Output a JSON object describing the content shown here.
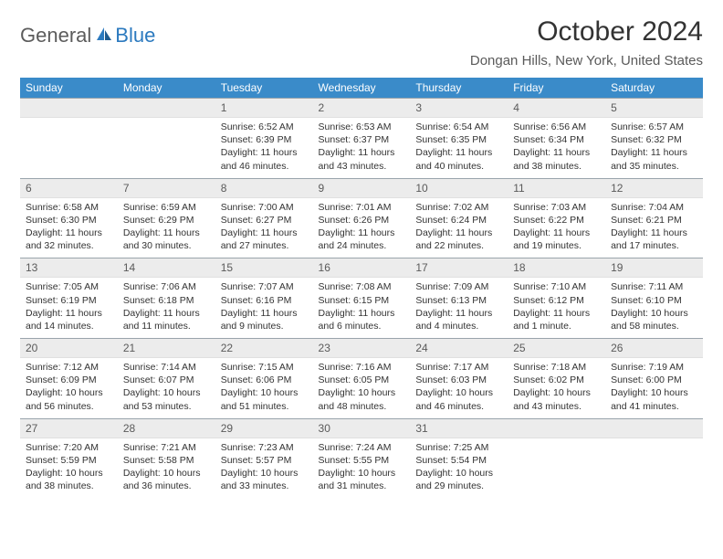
{
  "logo": {
    "general": "General",
    "blue": "Blue"
  },
  "title": "October 2024",
  "location": "Dongan Hills, New York, United States",
  "day_headers": [
    "Sunday",
    "Monday",
    "Tuesday",
    "Wednesday",
    "Thursday",
    "Friday",
    "Saturday"
  ],
  "colors": {
    "header_bg": "#3a8bc9",
    "header_text": "#ffffff",
    "daynum_bg": "#ececec",
    "daynum_border_top": "#9aa4ac",
    "text": "#333333",
    "location_text": "#5a5a5a",
    "logo_gray": "#5c5c5c",
    "logo_blue": "#2c7abf"
  },
  "weeks": [
    [
      {
        "num": "",
        "sunrise": "",
        "sunset": "",
        "daylight": ""
      },
      {
        "num": "",
        "sunrise": "",
        "sunset": "",
        "daylight": ""
      },
      {
        "num": "1",
        "sunrise": "Sunrise: 6:52 AM",
        "sunset": "Sunset: 6:39 PM",
        "daylight": "Daylight: 11 hours and 46 minutes."
      },
      {
        "num": "2",
        "sunrise": "Sunrise: 6:53 AM",
        "sunset": "Sunset: 6:37 PM",
        "daylight": "Daylight: 11 hours and 43 minutes."
      },
      {
        "num": "3",
        "sunrise": "Sunrise: 6:54 AM",
        "sunset": "Sunset: 6:35 PM",
        "daylight": "Daylight: 11 hours and 40 minutes."
      },
      {
        "num": "4",
        "sunrise": "Sunrise: 6:56 AM",
        "sunset": "Sunset: 6:34 PM",
        "daylight": "Daylight: 11 hours and 38 minutes."
      },
      {
        "num": "5",
        "sunrise": "Sunrise: 6:57 AM",
        "sunset": "Sunset: 6:32 PM",
        "daylight": "Daylight: 11 hours and 35 minutes."
      }
    ],
    [
      {
        "num": "6",
        "sunrise": "Sunrise: 6:58 AM",
        "sunset": "Sunset: 6:30 PM",
        "daylight": "Daylight: 11 hours and 32 minutes."
      },
      {
        "num": "7",
        "sunrise": "Sunrise: 6:59 AM",
        "sunset": "Sunset: 6:29 PM",
        "daylight": "Daylight: 11 hours and 30 minutes."
      },
      {
        "num": "8",
        "sunrise": "Sunrise: 7:00 AM",
        "sunset": "Sunset: 6:27 PM",
        "daylight": "Daylight: 11 hours and 27 minutes."
      },
      {
        "num": "9",
        "sunrise": "Sunrise: 7:01 AM",
        "sunset": "Sunset: 6:26 PM",
        "daylight": "Daylight: 11 hours and 24 minutes."
      },
      {
        "num": "10",
        "sunrise": "Sunrise: 7:02 AM",
        "sunset": "Sunset: 6:24 PM",
        "daylight": "Daylight: 11 hours and 22 minutes."
      },
      {
        "num": "11",
        "sunrise": "Sunrise: 7:03 AM",
        "sunset": "Sunset: 6:22 PM",
        "daylight": "Daylight: 11 hours and 19 minutes."
      },
      {
        "num": "12",
        "sunrise": "Sunrise: 7:04 AM",
        "sunset": "Sunset: 6:21 PM",
        "daylight": "Daylight: 11 hours and 17 minutes."
      }
    ],
    [
      {
        "num": "13",
        "sunrise": "Sunrise: 7:05 AM",
        "sunset": "Sunset: 6:19 PM",
        "daylight": "Daylight: 11 hours and 14 minutes."
      },
      {
        "num": "14",
        "sunrise": "Sunrise: 7:06 AM",
        "sunset": "Sunset: 6:18 PM",
        "daylight": "Daylight: 11 hours and 11 minutes."
      },
      {
        "num": "15",
        "sunrise": "Sunrise: 7:07 AM",
        "sunset": "Sunset: 6:16 PM",
        "daylight": "Daylight: 11 hours and 9 minutes."
      },
      {
        "num": "16",
        "sunrise": "Sunrise: 7:08 AM",
        "sunset": "Sunset: 6:15 PM",
        "daylight": "Daylight: 11 hours and 6 minutes."
      },
      {
        "num": "17",
        "sunrise": "Sunrise: 7:09 AM",
        "sunset": "Sunset: 6:13 PM",
        "daylight": "Daylight: 11 hours and 4 minutes."
      },
      {
        "num": "18",
        "sunrise": "Sunrise: 7:10 AM",
        "sunset": "Sunset: 6:12 PM",
        "daylight": "Daylight: 11 hours and 1 minute."
      },
      {
        "num": "19",
        "sunrise": "Sunrise: 7:11 AM",
        "sunset": "Sunset: 6:10 PM",
        "daylight": "Daylight: 10 hours and 58 minutes."
      }
    ],
    [
      {
        "num": "20",
        "sunrise": "Sunrise: 7:12 AM",
        "sunset": "Sunset: 6:09 PM",
        "daylight": "Daylight: 10 hours and 56 minutes."
      },
      {
        "num": "21",
        "sunrise": "Sunrise: 7:14 AM",
        "sunset": "Sunset: 6:07 PM",
        "daylight": "Daylight: 10 hours and 53 minutes."
      },
      {
        "num": "22",
        "sunrise": "Sunrise: 7:15 AM",
        "sunset": "Sunset: 6:06 PM",
        "daylight": "Daylight: 10 hours and 51 minutes."
      },
      {
        "num": "23",
        "sunrise": "Sunrise: 7:16 AM",
        "sunset": "Sunset: 6:05 PM",
        "daylight": "Daylight: 10 hours and 48 minutes."
      },
      {
        "num": "24",
        "sunrise": "Sunrise: 7:17 AM",
        "sunset": "Sunset: 6:03 PM",
        "daylight": "Daylight: 10 hours and 46 minutes."
      },
      {
        "num": "25",
        "sunrise": "Sunrise: 7:18 AM",
        "sunset": "Sunset: 6:02 PM",
        "daylight": "Daylight: 10 hours and 43 minutes."
      },
      {
        "num": "26",
        "sunrise": "Sunrise: 7:19 AM",
        "sunset": "Sunset: 6:00 PM",
        "daylight": "Daylight: 10 hours and 41 minutes."
      }
    ],
    [
      {
        "num": "27",
        "sunrise": "Sunrise: 7:20 AM",
        "sunset": "Sunset: 5:59 PM",
        "daylight": "Daylight: 10 hours and 38 minutes."
      },
      {
        "num": "28",
        "sunrise": "Sunrise: 7:21 AM",
        "sunset": "Sunset: 5:58 PM",
        "daylight": "Daylight: 10 hours and 36 minutes."
      },
      {
        "num": "29",
        "sunrise": "Sunrise: 7:23 AM",
        "sunset": "Sunset: 5:57 PM",
        "daylight": "Daylight: 10 hours and 33 minutes."
      },
      {
        "num": "30",
        "sunrise": "Sunrise: 7:24 AM",
        "sunset": "Sunset: 5:55 PM",
        "daylight": "Daylight: 10 hours and 31 minutes."
      },
      {
        "num": "31",
        "sunrise": "Sunrise: 7:25 AM",
        "sunset": "Sunset: 5:54 PM",
        "daylight": "Daylight: 10 hours and 29 minutes."
      },
      {
        "num": "",
        "sunrise": "",
        "sunset": "",
        "daylight": ""
      },
      {
        "num": "",
        "sunrise": "",
        "sunset": "",
        "daylight": ""
      }
    ]
  ]
}
